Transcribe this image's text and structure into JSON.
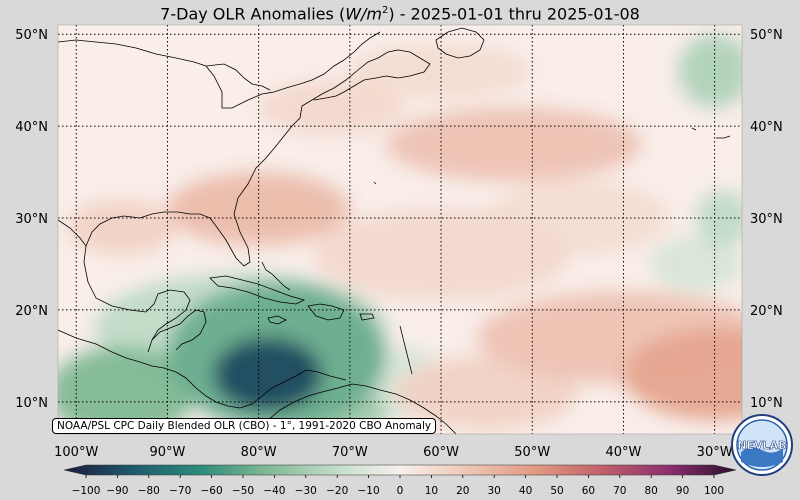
{
  "title": {
    "prefix": "7-Day OLR Anomalies (",
    "unit_base": "W/m",
    "unit_exp": "2",
    "suffix": ") - 2025-01-01 thru 2025-01-08"
  },
  "map": {
    "lon_range": [
      -102,
      -27
    ],
    "lat_range": [
      6.5,
      51
    ],
    "lat_ticks": [
      {
        "value": 50,
        "label": "50°N"
      },
      {
        "value": 40,
        "label": "40°N"
      },
      {
        "value": 30,
        "label": "30°N"
      },
      {
        "value": 20,
        "label": "20°N"
      },
      {
        "value": 10,
        "label": "10°N"
      }
    ],
    "lon_ticks": [
      {
        "value": -100,
        "label": "100°W"
      },
      {
        "value": -90,
        "label": "90°W"
      },
      {
        "value": -80,
        "label": "80°W"
      },
      {
        "value": -70,
        "label": "70°W"
      },
      {
        "value": -60,
        "label": "60°W"
      },
      {
        "value": -50,
        "label": "50°W"
      },
      {
        "value": -40,
        "label": "40°W"
      },
      {
        "value": -30,
        "label": "30°W"
      }
    ],
    "gridlines": true,
    "anomaly_blobs": [
      {
        "lon": -79,
        "lat": 13,
        "rlon": 6,
        "rlat": 4,
        "value": -85
      },
      {
        "lon": -78,
        "lat": 15,
        "rlon": 12,
        "rlat": 8,
        "value": -45
      },
      {
        "lon": -95,
        "lat": 11,
        "rlon": 8,
        "rlat": 5,
        "value": -40
      },
      {
        "lon": -72,
        "lat": 9,
        "rlon": 6,
        "rlat": 3,
        "value": -30
      },
      {
        "lon": -82,
        "lat": 18,
        "rlon": 16,
        "rlat": 6,
        "value": -20
      },
      {
        "lon": -65,
        "lat": 12,
        "rlon": 6,
        "rlat": 4,
        "value": -12
      },
      {
        "lon": -30,
        "lat": 46,
        "rlon": 4,
        "rlat": 4,
        "value": -25
      },
      {
        "lon": -29,
        "lat": 30,
        "rlon": 3,
        "rlat": 3,
        "value": -20
      },
      {
        "lon": -32,
        "lat": 25,
        "rlon": 5,
        "rlat": 3,
        "value": -12
      },
      {
        "lon": -80,
        "lat": 31,
        "rlon": 10,
        "rlat": 4,
        "value": 25
      },
      {
        "lon": -95,
        "lat": 29,
        "rlon": 6,
        "rlat": 3,
        "value": 15
      },
      {
        "lon": -52,
        "lat": 38,
        "rlon": 14,
        "rlat": 4,
        "value": 22
      },
      {
        "lon": -30,
        "lat": 13,
        "rlon": 10,
        "rlat": 5,
        "value": 35
      },
      {
        "lon": -40,
        "lat": 17,
        "rlon": 16,
        "rlat": 5,
        "value": 22
      },
      {
        "lon": -55,
        "lat": 11,
        "rlon": 10,
        "rlat": 4,
        "value": 15
      },
      {
        "lon": -60,
        "lat": 26,
        "rlon": 14,
        "rlat": 5,
        "value": 12
      },
      {
        "lon": -72,
        "lat": 42,
        "rlon": 8,
        "rlat": 3,
        "value": 12
      },
      {
        "lon": -45,
        "lat": 30,
        "rlon": 10,
        "rlat": 4,
        "value": 10
      },
      {
        "lon": -60,
        "lat": 46,
        "rlon": 10,
        "rlat": 3,
        "value": 10
      }
    ]
  },
  "colorbar": {
    "min": -100,
    "max": 100,
    "ticks": [
      -100,
      -90,
      -80,
      -70,
      -60,
      -50,
      -40,
      -30,
      -20,
      -10,
      0,
      10,
      20,
      30,
      40,
      50,
      60,
      70,
      80,
      90,
      100
    ],
    "tick_labels": [
      "−100",
      "−90",
      "−80",
      "−70",
      "−60",
      "−50",
      "−40",
      "−30",
      "−20",
      "−10",
      "0",
      "10",
      "20",
      "30",
      "40",
      "50",
      "60",
      "70",
      "80",
      "90",
      "100"
    ],
    "colors": {
      "min": "#1c1a3a",
      "dark_teal": "#1f5a6c",
      "teal": "#2b8a7a",
      "green": "#7fb894",
      "light_green": "#cfe3d2",
      "neutral": "#f7efec",
      "light_pink": "#f1d2c4",
      "salmon": "#e29a82",
      "red": "#c1616b",
      "purple": "#8c2f6f",
      "max": "#2b0f2a"
    }
  },
  "source": "NOAA/PSL CPC Daily Blended OLR (CBO) - 1°, 1991-2020 CBO Anomaly",
  "logo": {
    "text": "NEVLAB",
    "icon": "noaa-psl-logo-icon"
  }
}
